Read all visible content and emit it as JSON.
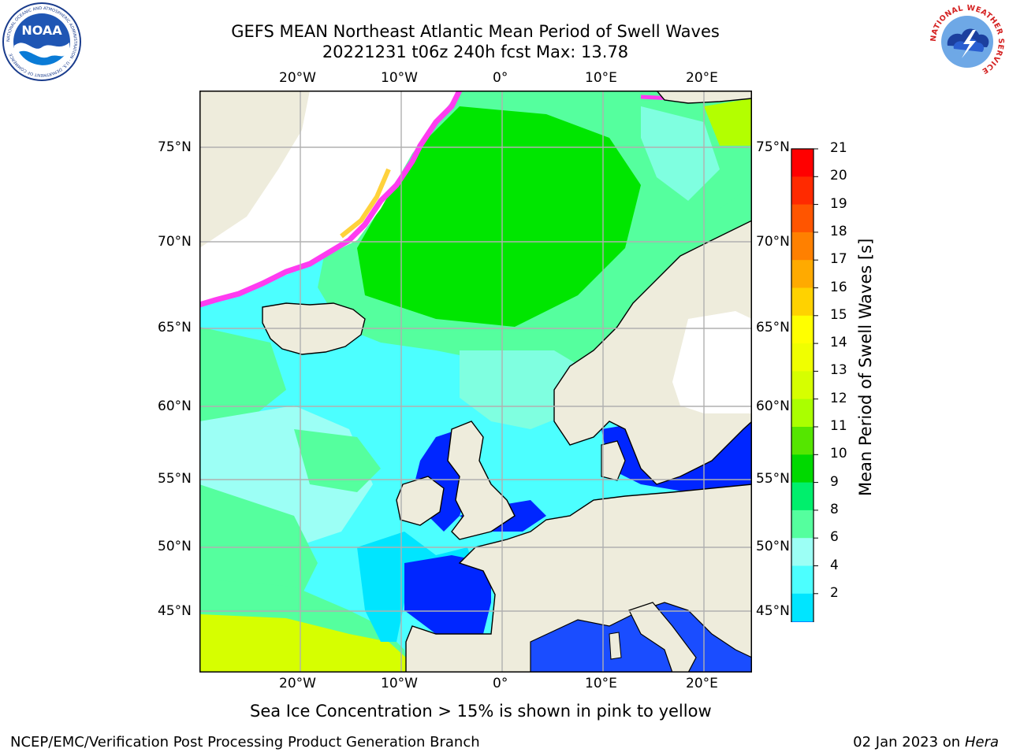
{
  "header": {
    "title_line1": "GEFS MEAN Northeast Atlantic Mean Period of Swell Waves",
    "title_line2": "20221231 t06z 240h fcst   Max: 13.78"
  },
  "logos": {
    "left": {
      "name": "NOAA",
      "ring_text": "NATIONAL OCEANIC AND ATMOSPHERIC ADMINISTRATION · U.S. DEPARTMENT OF COMMERCE",
      "center": "NOAA"
    },
    "right": {
      "name": "NATIONAL WEATHER SERVICE",
      "ring_text": "NATIONAL WEATHER SERVICE"
    }
  },
  "map": {
    "top_lon_labels": [
      "20°W",
      "10°W",
      "0°",
      "10°E",
      "20°E"
    ],
    "bottom_lon_labels": [
      "20°W",
      "10°W",
      "0°",
      "10°E",
      "20°E"
    ],
    "left_lat_labels": [
      "75°N",
      "70°N",
      "65°N",
      "60°N",
      "55°N",
      "50°N",
      "45°N"
    ],
    "right_lat_labels": [
      "75°N",
      "70°N",
      "65°N",
      "60°N",
      "55°N",
      "50°N",
      "45°N"
    ],
    "colors": {
      "land": "#eeecdc",
      "ocean_low": "#00e5ff",
      "ocean_mid": "#7fffe0",
      "ocean_green": "#00d900",
      "ocean_yellow": "#d6ff00",
      "shallow_blue": "#0026ff",
      "ice_pink": "#ff3cf0",
      "ice_yellow": "#ffd23c",
      "grid": "#b0b0b0"
    }
  },
  "colorbar": {
    "label": "Mean Period of Swell Waves [s]",
    "ticks": [
      "21",
      "20",
      "19",
      "18",
      "17",
      "16",
      "15",
      "14",
      "13",
      "12",
      "11",
      "10",
      "9",
      "8",
      "6",
      "4",
      "2"
    ],
    "colors": [
      "#ff0000",
      "#ff2a00",
      "#ff5500",
      "#ff8000",
      "#ffaa00",
      "#ffd200",
      "#ffff00",
      "#f0ff00",
      "#d6ff00",
      "#aaff00",
      "#55e600",
      "#00d900",
      "#00ef6c",
      "#55ff9e",
      "#9cfff5",
      "#4cffff",
      "#00e5ff",
      "#0077ff"
    ],
    "extend_color": "#0000f0"
  },
  "caption": "Sea Ice Concentration > 15% is shown in pink to yellow",
  "footer": {
    "left": "NCEP/EMC/Verification Post Processing Product Generation Branch",
    "date": "02 Jan 2023 on ",
    "machine": "Hera"
  }
}
